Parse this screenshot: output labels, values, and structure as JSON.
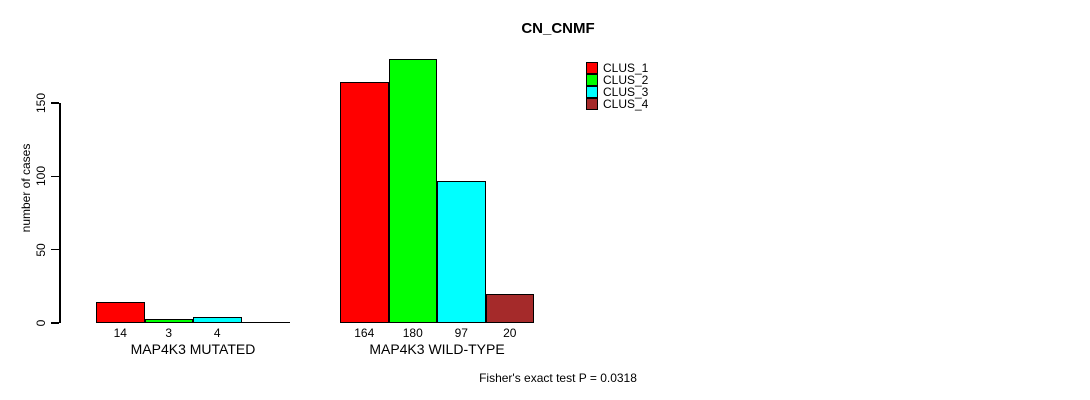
{
  "chart_data": {
    "type": "bar",
    "title": "CN_CNMF",
    "ylabel": "number of cases",
    "xlabel": "",
    "ylim": [
      0,
      150
    ],
    "yticks": [
      0,
      50,
      100,
      150
    ],
    "grid": false,
    "legend_position": "top-right",
    "series": [
      {
        "name": "CLUS_1",
        "color": "#ff0000"
      },
      {
        "name": "CLUS_2",
        "color": "#00ff00"
      },
      {
        "name": "CLUS_3",
        "color": "#00ffff"
      },
      {
        "name": "CLUS_4",
        "color": "#a52a2a"
      }
    ],
    "groups": [
      {
        "label": "MAP4K3 MUTATED",
        "values": [
          14,
          3,
          4,
          0
        ],
        "bar_labels": [
          "14",
          "3",
          "4",
          ""
        ]
      },
      {
        "label": "MAP4K3 WILD-TYPE",
        "values": [
          164,
          180,
          97,
          20
        ],
        "bar_labels": [
          "164",
          "180",
          "97",
          "20"
        ]
      }
    ],
    "footer": "Fisher's exact test P = 0.0318"
  }
}
